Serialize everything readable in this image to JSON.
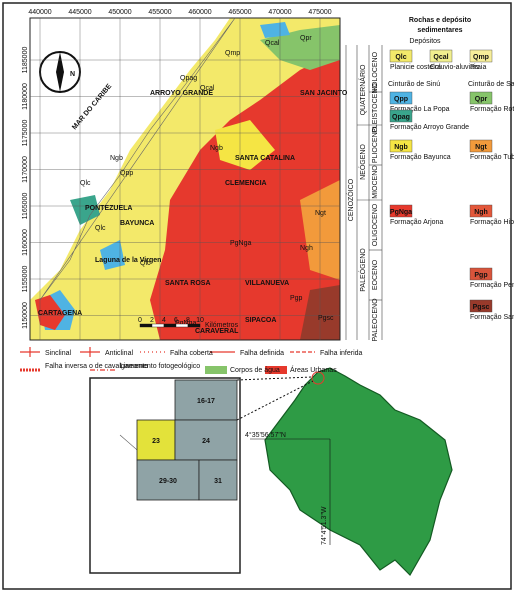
{
  "map": {
    "x_coords": [
      "440000",
      "445000",
      "450000",
      "455000",
      "460000",
      "465000",
      "470000",
      "475000"
    ],
    "y_coords": [
      "1185000",
      "1180000",
      "1175000",
      "1170000",
      "1165000",
      "1160000",
      "1155000",
      "1150000"
    ],
    "north": "N",
    "places": [
      "MAR DO CARIBE",
      "ARROYO GRANDE",
      "SANTA CATALINA",
      "CLEMENCIA",
      "PONTEZUELA",
      "BAYUNCA",
      "SANTA ROSA",
      "VILLANUEVA",
      "CARTAGENA",
      "Laguna de la Virgen",
      "CARAVERAL",
      "SIPACOA",
      "SAN JACINTO"
    ],
    "units": [
      "Qmp",
      "Qcal",
      "Qpag",
      "Qpp",
      "Qlc",
      "Ngb",
      "Ngb",
      "Qlc",
      "PgNga",
      "PgNga",
      "Pgp",
      "Ngh",
      "Ngt",
      "Qpr",
      "Qcal",
      "Qlc",
      "Pgsc"
    ],
    "scale": {
      "ticks": [
        "0",
        "2",
        "4",
        "6",
        "8",
        "10"
      ],
      "unit": "Kilómetros"
    }
  },
  "legend": {
    "title": "Rochas e depósito",
    "title2": "sedimentares",
    "subtitle": "Depósitos",
    "periods": [
      "QUATERNÁRIO",
      "HOLOCENO",
      "PLEISTOCENO",
      "NEÓGENO",
      "PLIOCENO",
      "MIOCENO",
      "CENOZÓICO",
      "PALEÓGENO",
      "OLIGOCENO",
      "EOCENO",
      "PALEOCENO"
    ],
    "belts": [
      "Cinturão de Sinú",
      "Cinturão de San Jacinto"
    ],
    "items": [
      {
        "code": "Qlc",
        "name": "Planicie costeira",
        "color": "#f3e96a"
      },
      {
        "code": "Qcal",
        "name": "Coluvio-aluviais",
        "color": "#f1ef8e"
      },
      {
        "code": "Qmp",
        "name": "Praia",
        "color": "#f7ee9a"
      },
      {
        "code": "Qpp",
        "name": "Formação La Popa",
        "color": "#4fb3e3"
      },
      {
        "code": "Qpr",
        "name": "Formação Rotinet",
        "color": "#86c46a"
      },
      {
        "code": "Qpag",
        "name": "Formação Arroyo Grande",
        "color": "#3aa58c"
      },
      {
        "code": "Ngb",
        "name": "Formação Bayunca",
        "color": "#f5e544"
      },
      {
        "code": "Ngt",
        "name": "Formação Tubará",
        "color": "#f29a3b"
      },
      {
        "code": "PgNga",
        "name": "Formação Arjona",
        "color": "#e6392d"
      },
      {
        "code": "Ngh",
        "name": "Formação Hibácharo",
        "color": "#e3573a"
      },
      {
        "code": "Pgp",
        "name": "Formação Pendales",
        "color": "#d8543b"
      },
      {
        "code": "Pgsc",
        "name": "Formação San Cayetano",
        "color": "#983a2b"
      }
    ]
  },
  "symbols": [
    "Sinclinal",
    "Anticlinal",
    "Falha coberta",
    "Falha definida",
    "Falha inferida",
    "Falha inversa o de cavalgamento",
    "Lineamento fotogeológico",
    "Corpos de água",
    "Áreas Urbanas"
  ],
  "inset": {
    "cells": [
      "16-17",
      "23",
      "24",
      "29-30",
      "31"
    ],
    "lat": "4°35'56.57\"N",
    "lon": "74°4'51.3\"W"
  }
}
